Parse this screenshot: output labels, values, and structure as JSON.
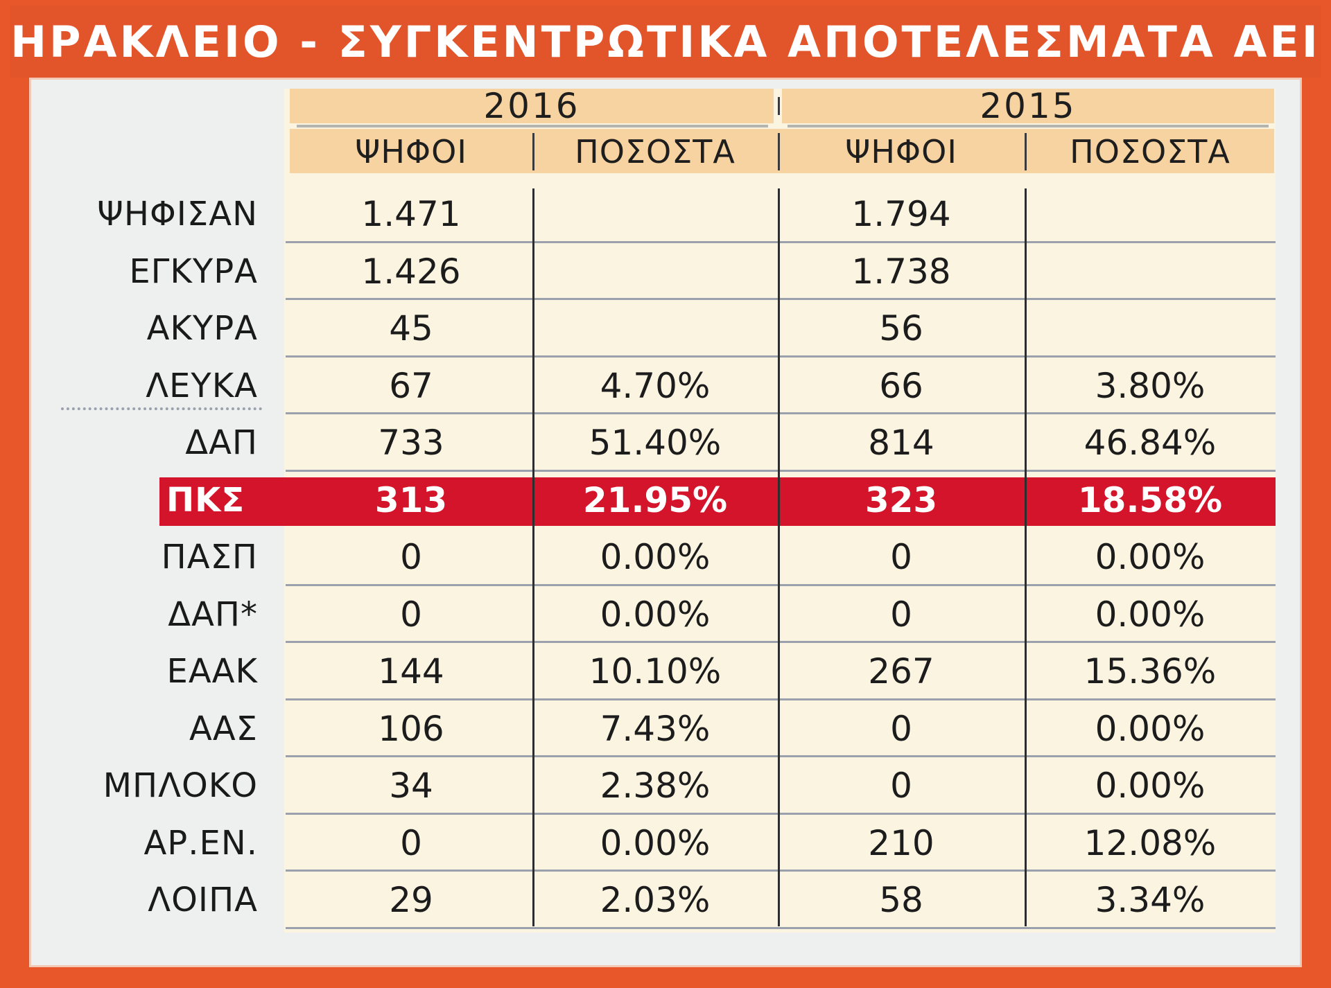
{
  "title": "ΗΡΑΚΛΕΙΟ - ΣΥΓΚΕΝΤΡΩΤΙΚΑ ΑΠΟΤΕΛΕΣΜΑΤΑ ΑΕΙ",
  "colors": {
    "title_bg": "#e2552b",
    "header_band": "#f6d3a0",
    "table_bg": "#fbf4e1",
    "highlight_row": "#d4142a"
  },
  "chart_data": {
    "type": "table",
    "title": "ΗΡΑΚΛΕΙΟ - ΣΥΓΚΕΝΤΡΩΤΙΚΑ ΑΠΟΤΕΛΕΣΜΑΤΑ ΑΕΙ",
    "years": [
      "2016",
      "2015"
    ],
    "subheaders": [
      "ΨΗΦΟΙ",
      "ΠΟΣΟΣΤΑ",
      "ΨΗΦΟΙ",
      "ΠΟΣΟΣΤΑ"
    ],
    "highlighted_row": "ΠΚΣ",
    "rows": [
      {
        "label": "ΨΗΦΙΣΑΝ",
        "votes_2016": "1.471",
        "pct_2016": "",
        "votes_2015": "1.794",
        "pct_2015": ""
      },
      {
        "label": "ΕΓΚΥΡΑ",
        "votes_2016": "1.426",
        "pct_2016": "",
        "votes_2015": "1.738",
        "pct_2015": ""
      },
      {
        "label": "ΑΚΥΡΑ",
        "votes_2016": "45",
        "pct_2016": "",
        "votes_2015": "56",
        "pct_2015": ""
      },
      {
        "label": "ΛΕΥΚΑ",
        "votes_2016": "67",
        "pct_2016": "4.70%",
        "votes_2015": "66",
        "pct_2015": "3.80%"
      },
      {
        "label": "ΔΑΠ",
        "votes_2016": "733",
        "pct_2016": "51.40%",
        "votes_2015": "814",
        "pct_2015": "46.84%"
      },
      {
        "label": "ΠΚΣ",
        "votes_2016": "313",
        "pct_2016": "21.95%",
        "votes_2015": "323",
        "pct_2015": "18.58%"
      },
      {
        "label": "ΠΑΣΠ",
        "votes_2016": "0",
        "pct_2016": "0.00%",
        "votes_2015": "0",
        "pct_2015": "0.00%"
      },
      {
        "label": "ΔΑΠ*",
        "votes_2016": "0",
        "pct_2016": "0.00%",
        "votes_2015": "0",
        "pct_2015": "0.00%"
      },
      {
        "label": "ΕΑΑΚ",
        "votes_2016": "144",
        "pct_2016": "10.10%",
        "votes_2015": "267",
        "pct_2015": "15.36%"
      },
      {
        "label": "ΑΑΣ",
        "votes_2016": "106",
        "pct_2016": "7.43%",
        "votes_2015": "0",
        "pct_2015": "0.00%"
      },
      {
        "label": "ΜΠΛΟΚΟ",
        "votes_2016": "34",
        "pct_2016": "2.38%",
        "votes_2015": "0",
        "pct_2015": "0.00%"
      },
      {
        "label": "ΑΡ.ΕΝ.",
        "votes_2016": "0",
        "pct_2016": "0.00%",
        "votes_2015": "210",
        "pct_2015": "12.08%"
      },
      {
        "label": "ΛΟΙΠΑ",
        "votes_2016": "29",
        "pct_2016": "2.03%",
        "votes_2015": "58",
        "pct_2015": "3.34%"
      }
    ]
  }
}
